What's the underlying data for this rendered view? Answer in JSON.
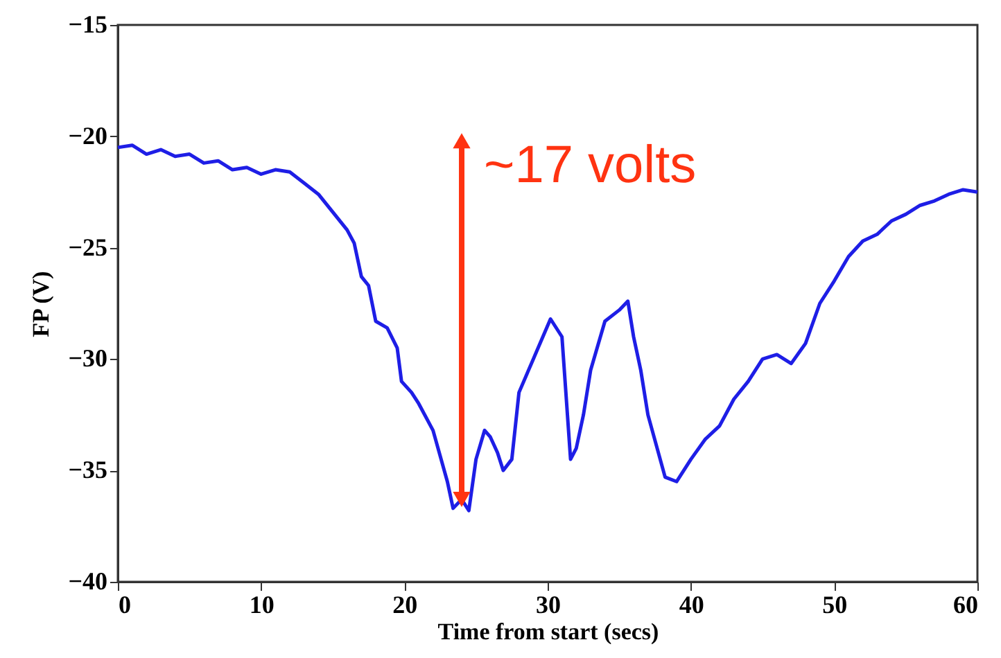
{
  "chart_data": {
    "type": "line",
    "xlabel": "Time from start (secs)",
    "ylabel": "FP (V)",
    "x": [
      0,
      1,
      2,
      3,
      4,
      5,
      6,
      7,
      8,
      9,
      10,
      11,
      12,
      13,
      14,
      15,
      16,
      16.5,
      17,
      17.5,
      18,
      18.8,
      19.5,
      19.8,
      20.5,
      21,
      22,
      23,
      23.4,
      24,
      24.5,
      25,
      25.6,
      26,
      26.5,
      26.9,
      27.5,
      28,
      29,
      30.2,
      31,
      31.6,
      32,
      32.5,
      33,
      34,
      35,
      35.6,
      36,
      36.5,
      37,
      38.2,
      39,
      40,
      41,
      42,
      43,
      44,
      45,
      46,
      47,
      48,
      49,
      50,
      51,
      52,
      53,
      54,
      55,
      56,
      57,
      58,
      59,
      60
    ],
    "series": [
      {
        "color": "#1e1ee6",
        "values": [
          -20.5,
          -20.4,
          -20.8,
          -20.6,
          -20.9,
          -20.8,
          -21.2,
          -21.1,
          -21.5,
          -21.4,
          -21.7,
          -21.5,
          -21.6,
          -22.1,
          -22.6,
          -23.4,
          -24.2,
          -24.8,
          -26.3,
          -26.7,
          -28.3,
          -28.6,
          -29.5,
          -31,
          -31.5,
          -32,
          -33.2,
          -35.5,
          -36.7,
          -36.3,
          -36.8,
          -34.5,
          -33.2,
          -33.5,
          -34.2,
          -35,
          -34.5,
          -31.5,
          -30,
          -28.2,
          -29,
          -34.5,
          -34,
          -32.5,
          -30.5,
          -28.3,
          -27.8,
          -27.4,
          -29,
          -30.5,
          -32.5,
          -35.3,
          -35.5,
          -34.5,
          -33.6,
          -33,
          -31.8,
          -31,
          -30,
          -29.8,
          -30.2,
          -29.3,
          -27.5,
          -26.5,
          -25.4,
          -24.7,
          -24.4,
          -23.8,
          -23.5,
          -23.1,
          -22.9,
          -22.6,
          -22.4,
          -22.5
        ]
      }
    ],
    "xlim": [
      0,
      60
    ],
    "xticks": [
      0,
      10,
      20,
      30,
      40,
      50,
      60
    ],
    "ylim": [
      -40,
      -15
    ],
    "yticks": [
      -40,
      -35,
      -30,
      -25,
      -20,
      -15
    ],
    "marker": "none",
    "line_style": "solid",
    "annotations": [
      {
        "text": "~17 volts",
        "x": 24,
        "y": -20.2
      }
    ]
  }
}
